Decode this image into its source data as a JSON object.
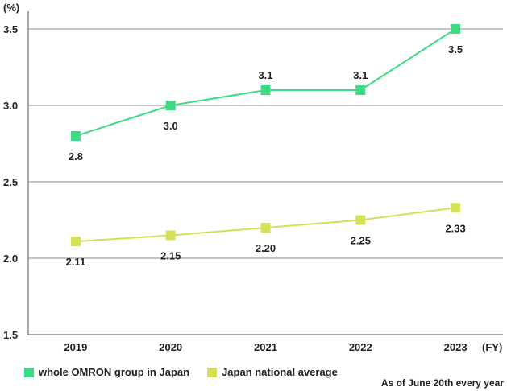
{
  "chart_data": {
    "type": "line",
    "unit_label": "(%)",
    "x_unit_label": "(FY)",
    "categories": [
      "2019",
      "2020",
      "2021",
      "2022",
      "2023"
    ],
    "yticks": [
      "1.5",
      "2.0",
      "2.5",
      "3.0",
      "3.5"
    ],
    "ylim": [
      1.5,
      3.5
    ],
    "grid": true,
    "legend_position": "bottom-left",
    "series": [
      {
        "name": "whole OMRON group in Japan",
        "color": "#3ddc84",
        "values": [
          2.8,
          3.0,
          3.1,
          3.1,
          3.5
        ],
        "labels": [
          "2.8",
          "3.0",
          "3.1",
          "3.1",
          "3.5"
        ]
      },
      {
        "name": "Japan national average",
        "color": "#d4e157",
        "values": [
          2.11,
          2.15,
          2.2,
          2.25,
          2.33
        ],
        "labels": [
          "2.11",
          "2.15",
          "2.20",
          "2.25",
          "2.33"
        ]
      }
    ],
    "note": "As of June 20th every year"
  }
}
